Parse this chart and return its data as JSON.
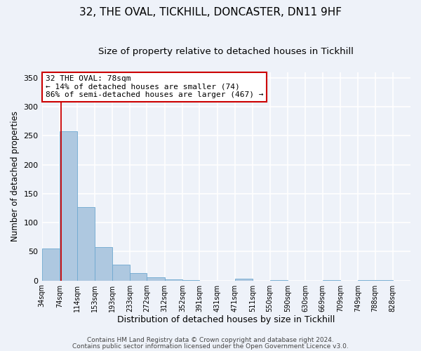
{
  "title_line1": "32, THE OVAL, TICKHILL, DONCASTER, DN11 9HF",
  "title_line2": "Size of property relative to detached houses in Tickhill",
  "xlabel": "Distribution of detached houses by size in Tickhill",
  "ylabel": "Number of detached properties",
  "bar_left_edges": [
    34,
    74,
    114,
    153,
    193,
    233,
    272,
    312,
    352,
    391,
    431,
    471,
    511,
    550,
    590,
    630,
    669,
    709,
    749,
    788
  ],
  "bar_widths": [
    40,
    40,
    39,
    40,
    40,
    39,
    40,
    40,
    39,
    40,
    40,
    40,
    39,
    40,
    40,
    39,
    40,
    40,
    39,
    40
  ],
  "bar_heights": [
    55,
    257,
    127,
    58,
    27,
    13,
    5,
    2,
    1,
    0,
    0,
    3,
    0,
    1,
    0,
    0,
    1,
    0,
    1,
    1
  ],
  "bar_color": "#aec8e0",
  "bar_edge_color": "#6ea8d0",
  "property_line_x": 78,
  "property_line_color": "#cc0000",
  "annotation_text_line1": "32 THE OVAL: 78sqm",
  "annotation_text_line2": "← 14% of detached houses are smaller (74)",
  "annotation_text_line3": "86% of semi-detached houses are larger (467) →",
  "annotation_box_color": "#ffffff",
  "annotation_box_edge_color": "#cc0000",
  "ylim": [
    0,
    360
  ],
  "yticks": [
    0,
    50,
    100,
    150,
    200,
    250,
    300,
    350
  ],
  "tick_labels": [
    "34sqm",
    "74sqm",
    "114sqm",
    "153sqm",
    "193sqm",
    "233sqm",
    "272sqm",
    "312sqm",
    "352sqm",
    "391sqm",
    "431sqm",
    "471sqm",
    "511sqm",
    "550sqm",
    "590sqm",
    "630sqm",
    "669sqm",
    "709sqm",
    "749sqm",
    "788sqm",
    "828sqm"
  ],
  "tick_positions": [
    34,
    74,
    114,
    153,
    193,
    233,
    272,
    312,
    352,
    391,
    431,
    471,
    511,
    550,
    590,
    630,
    669,
    709,
    749,
    788,
    828
  ],
  "footer_line1": "Contains HM Land Registry data © Crown copyright and database right 2024.",
  "footer_line2": "Contains public sector information licensed under the Open Government Licence v3.0.",
  "background_color": "#eef2f9",
  "grid_color": "#ffffff",
  "title_fontsize": 11,
  "subtitle_fontsize": 9.5,
  "xlabel_fontsize": 9,
  "ylabel_fontsize": 8.5,
  "tick_fontsize": 7,
  "annot_fontsize": 8,
  "footer_fontsize": 6.5
}
